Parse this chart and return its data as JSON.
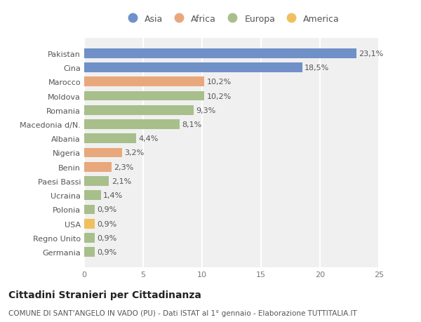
{
  "countries": [
    "Pakistan",
    "Cina",
    "Marocco",
    "Moldova",
    "Romania",
    "Macedonia d/N.",
    "Albania",
    "Nigeria",
    "Benin",
    "Paesi Bassi",
    "Ucraina",
    "Polonia",
    "USA",
    "Regno Unito",
    "Germania"
  ],
  "values": [
    23.1,
    18.5,
    10.2,
    10.2,
    9.3,
    8.1,
    4.4,
    3.2,
    2.3,
    2.1,
    1.4,
    0.9,
    0.9,
    0.9,
    0.9
  ],
  "labels": [
    "23,1%",
    "18,5%",
    "10,2%",
    "10,2%",
    "9,3%",
    "8,1%",
    "4,4%",
    "3,2%",
    "2,3%",
    "2,1%",
    "1,4%",
    "0,9%",
    "0,9%",
    "0,9%",
    "0,9%"
  ],
  "continents": [
    "Asia",
    "Asia",
    "Africa",
    "Europa",
    "Europa",
    "Europa",
    "Europa",
    "Africa",
    "Africa",
    "Europa",
    "Europa",
    "Europa",
    "America",
    "Europa",
    "Europa"
  ],
  "colors": {
    "Asia": "#7090c8",
    "Africa": "#e8a87c",
    "Europa": "#a8bf8c",
    "America": "#f0c060"
  },
  "legend_order": [
    "Asia",
    "Africa",
    "Europa",
    "America"
  ],
  "title": "Cittadini Stranieri per Cittadinanza",
  "subtitle": "COMUNE DI SANT'ANGELO IN VADO (PU) - Dati ISTAT al 1° gennaio - Elaborazione TUTTITALIA.IT",
  "xlim": [
    0,
    25
  ],
  "xticks": [
    0,
    5,
    10,
    15,
    20,
    25
  ],
  "bg_color": "#ffffff",
  "plot_bg_color": "#f0f0f0",
  "grid_color": "#ffffff",
  "bar_height": 0.68,
  "title_fontsize": 10,
  "subtitle_fontsize": 7.5,
  "label_fontsize": 8,
  "tick_fontsize": 8,
  "legend_fontsize": 9
}
